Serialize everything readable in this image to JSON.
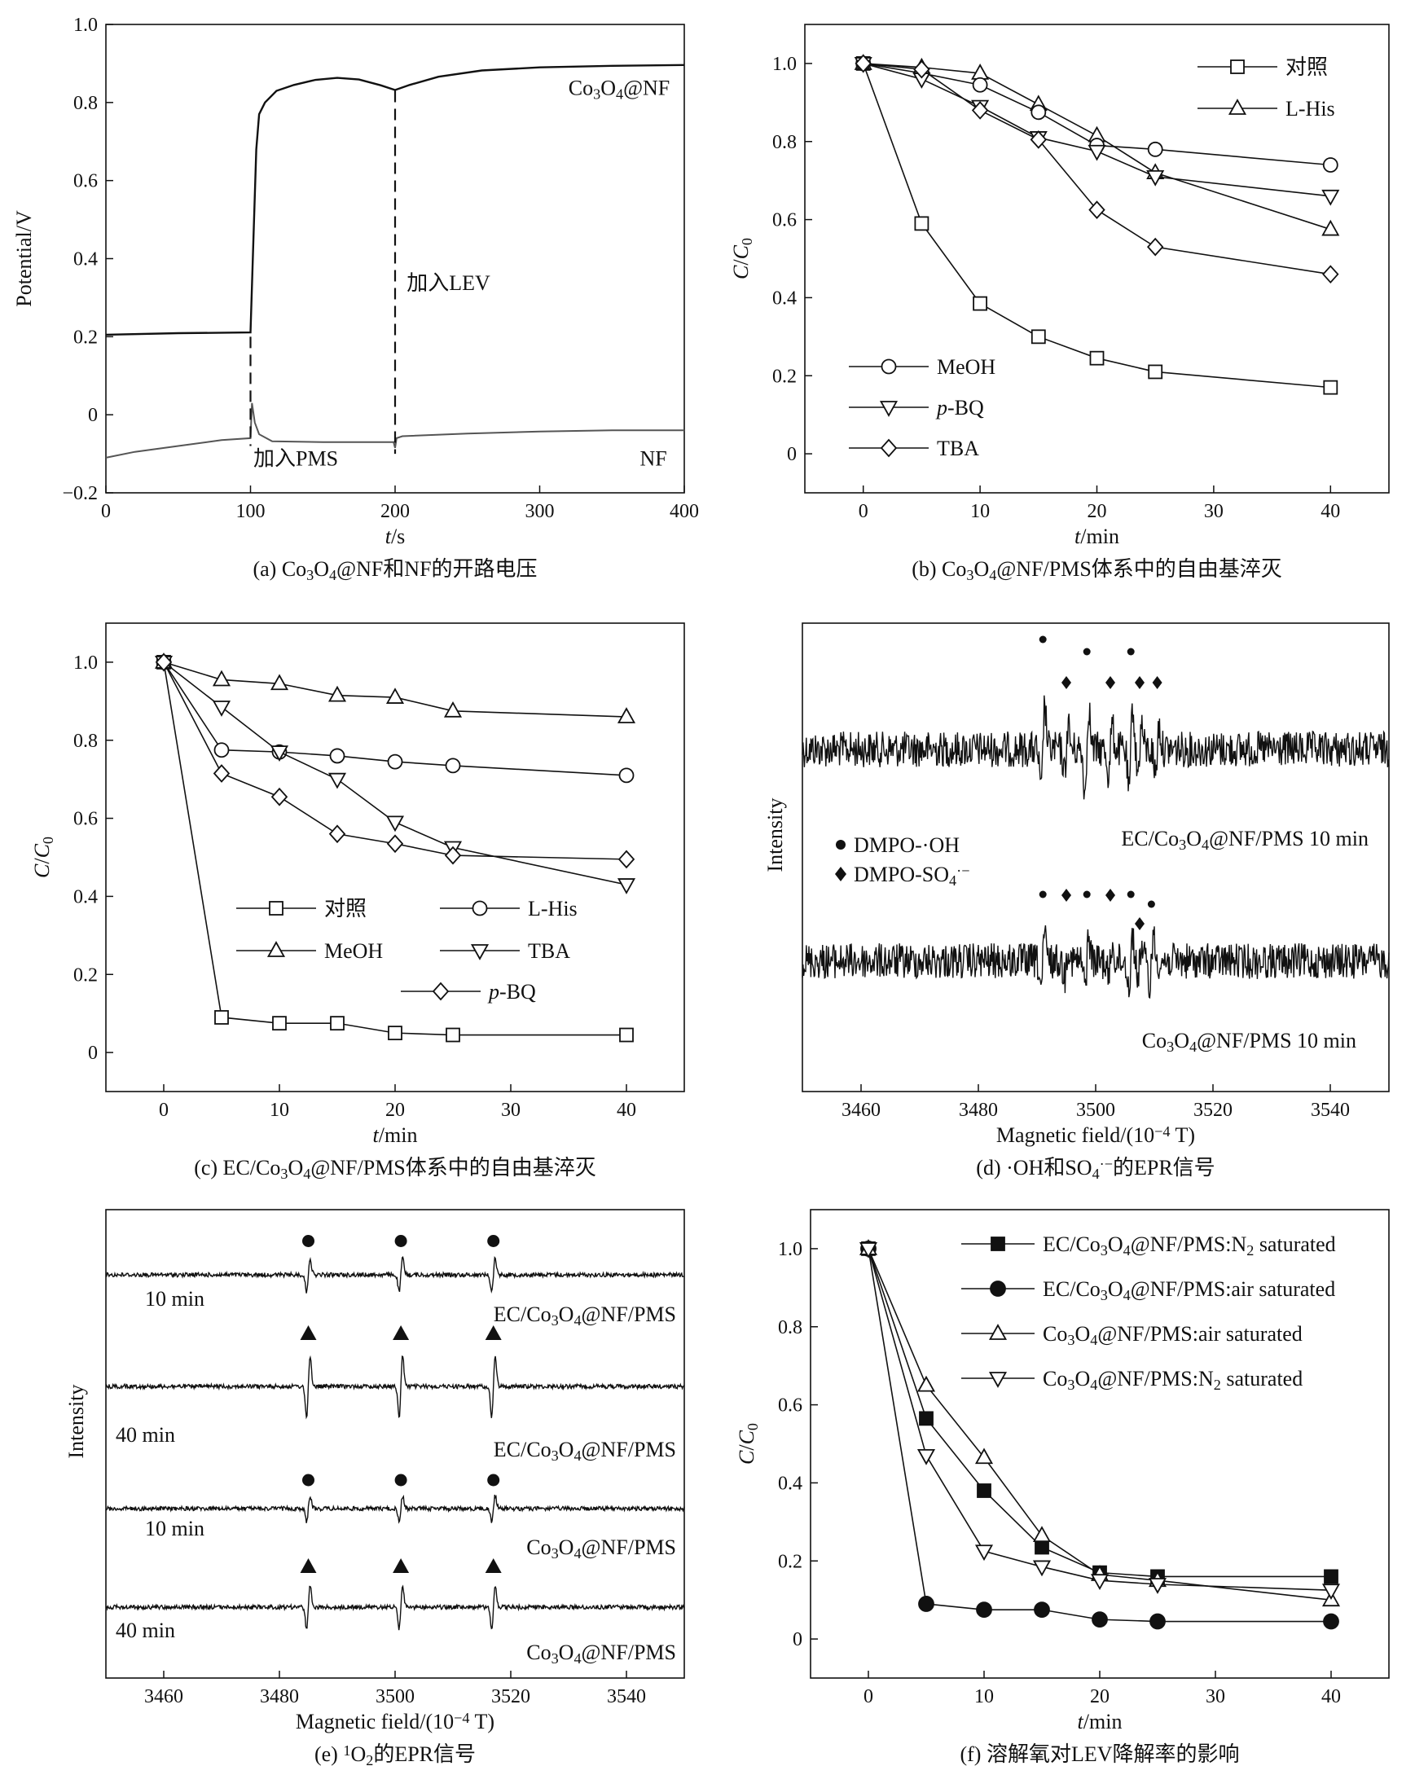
{
  "chart_data": [
    {
      "id": "a",
      "type": "line",
      "caption": "(a) Co3O4@NF和NF的开路电压",
      "xlabel": "t/s",
      "ylabel": "Potential/V",
      "xlim": [
        0,
        400
      ],
      "ylim": [
        -0.2,
        1.0
      ],
      "xticks": [
        0,
        100,
        200,
        300,
        400
      ],
      "yticks": [
        -0.2,
        0,
        0.2,
        0.4,
        0.6,
        0.8,
        1.0
      ],
      "series": [
        {
          "name": "Co3O4@NF",
          "color": "#111111",
          "x": [
            0,
            50,
            100,
            102,
            104,
            106,
            110,
            118,
            130,
            145,
            160,
            175,
            190,
            200,
            210,
            230,
            260,
            300,
            350,
            400
          ],
          "y": [
            0.205,
            0.209,
            0.211,
            0.45,
            0.68,
            0.77,
            0.8,
            0.83,
            0.845,
            0.858,
            0.863,
            0.859,
            0.844,
            0.832,
            0.845,
            0.866,
            0.882,
            0.89,
            0.894,
            0.896
          ]
        },
        {
          "name": "NF",
          "color": "#555555",
          "x": [
            0,
            20,
            50,
            80,
            100,
            101,
            103,
            106,
            115,
            150,
            199,
            200,
            201,
            205,
            250,
            300,
            350,
            400
          ],
          "y": [
            -0.11,
            -0.095,
            -0.08,
            -0.065,
            -0.06,
            0.03,
            -0.02,
            -0.05,
            -0.068,
            -0.07,
            -0.07,
            -0.085,
            -0.06,
            -0.055,
            -0.048,
            -0.043,
            -0.04,
            -0.04
          ]
        }
      ],
      "annotations": {
        "pms": "加入PMS",
        "lev": "加入LEV",
        "co3o4_label": "Co3O4@NF",
        "nf_label": "NF"
      }
    },
    {
      "id": "b",
      "type": "line",
      "caption": "(b) Co3O4@NF/PMS体系中的自由基淬灭",
      "xlabel": "t/min",
      "ylabel": "C/C0",
      "xlim": [
        -5,
        45
      ],
      "ylim": [
        -0.1,
        1.1
      ],
      "xticks": [
        0,
        10,
        20,
        30,
        40
      ],
      "yticks": [
        0,
        0.2,
        0.4,
        0.6,
        0.8,
        1.0
      ],
      "x": [
        0,
        5,
        10,
        15,
        20,
        25,
        40
      ],
      "series": [
        {
          "name": "对照",
          "marker": "square",
          "values": [
            1.0,
            0.59,
            0.385,
            0.3,
            0.245,
            0.21,
            0.17
          ]
        },
        {
          "name": "L-His",
          "marker": "triangle-up",
          "values": [
            1.0,
            0.99,
            0.975,
            0.895,
            0.815,
            0.72,
            0.575
          ]
        },
        {
          "name": "MeOH",
          "marker": "circle",
          "values": [
            1.0,
            0.975,
            0.945,
            0.875,
            0.79,
            0.78,
            0.74
          ]
        },
        {
          "name": "p-BQ",
          "marker": "triangle-down",
          "values": [
            1.0,
            0.96,
            0.89,
            0.81,
            0.775,
            0.71,
            0.66
          ]
        },
        {
          "name": "TBA",
          "marker": "diamond",
          "values": [
            1.0,
            0.985,
            0.88,
            0.805,
            0.625,
            0.53,
            0.46
          ]
        }
      ]
    },
    {
      "id": "c",
      "type": "line",
      "caption": "(c) EC/Co3O4@NF/PMS体系中的自由基淬灭",
      "xlabel": "t/min",
      "ylabel": "C/C0",
      "xlim": [
        -5,
        45
      ],
      "ylim": [
        -0.1,
        1.1
      ],
      "xticks": [
        0,
        10,
        20,
        30,
        40
      ],
      "yticks": [
        0,
        0.2,
        0.4,
        0.6,
        0.8,
        1.0
      ],
      "x": [
        0,
        5,
        10,
        15,
        20,
        25,
        40
      ],
      "series": [
        {
          "name": "对照",
          "marker": "square",
          "values": [
            1.0,
            0.09,
            0.075,
            0.075,
            0.05,
            0.045,
            0.045
          ]
        },
        {
          "name": "L-His",
          "marker": "circle",
          "values": [
            1.0,
            0.775,
            0.77,
            0.76,
            0.745,
            0.735,
            0.71
          ]
        },
        {
          "name": "MeOH",
          "marker": "triangle-up",
          "values": [
            1.0,
            0.955,
            0.945,
            0.915,
            0.91,
            0.875,
            0.86
          ]
        },
        {
          "name": "TBA",
          "marker": "triangle-down",
          "values": [
            1.0,
            0.885,
            0.77,
            0.7,
            0.59,
            0.525,
            0.43
          ]
        },
        {
          "name": "p-BQ",
          "marker": "diamond",
          "values": [
            1.0,
            0.715,
            0.655,
            0.56,
            0.535,
            0.505,
            0.495
          ]
        }
      ]
    },
    {
      "id": "d",
      "type": "line",
      "caption": "(d) ·OH和SO4·−的EPR信号",
      "xlabel": "Magnetic field/(10⁻⁴ T)",
      "ylabel": "Intensity",
      "xlim": [
        3450,
        3550
      ],
      "xticks": [
        3460,
        3480,
        3500,
        3520,
        3540
      ],
      "traces": [
        {
          "name": "EC/Co3O4@NF/PMS   10 min",
          "peaks_oh": [
            3491,
            3498.5,
            3506
          ],
          "peaks_so4": [
            3495,
            3502.5,
            3507.5,
            3510.5
          ]
        },
        {
          "name": "Co3O4@NF/PMS   10 min",
          "peaks_oh": [
            3491,
            3498.5,
            3506,
            3509.5
          ],
          "peaks_so4": [
            3495,
            3502.5,
            3507.5
          ]
        }
      ],
      "legend": [
        "DMPO-·OH",
        "DMPO-SO4·−"
      ]
    },
    {
      "id": "e",
      "type": "line",
      "caption": "(e) ¹O2的EPR信号",
      "xlabel": "Magnetic field/(10⁻⁴ T)",
      "ylabel": "Intensity",
      "xlim": [
        3450,
        3550
      ],
      "xticks": [
        3460,
        3480,
        3500,
        3520,
        3540
      ],
      "peaks": [
        3485,
        3501,
        3517
      ],
      "traces": [
        {
          "time": "10 min",
          "system": "EC/Co3O4@NF/PMS",
          "marker": "circle",
          "amp": 0.55
        },
        {
          "time": "40 min",
          "system": "EC/Co3O4@NF/PMS",
          "marker": "triangle",
          "amp": 1.0
        },
        {
          "time": "10 min",
          "system": "Co3O4@NF/PMS",
          "marker": "circle",
          "amp": 0.42
        },
        {
          "time": "40 min",
          "system": "Co3O4@NF/PMS",
          "marker": "triangle",
          "amp": 0.7
        }
      ]
    },
    {
      "id": "f",
      "type": "line",
      "caption": "(f) 溶解氧对LEV降解率的影响",
      "xlabel": "t/min",
      "ylabel": "C/C0",
      "xlim": [
        -5,
        45
      ],
      "ylim": [
        -0.1,
        1.1
      ],
      "xticks": [
        0,
        10,
        20,
        30,
        40
      ],
      "yticks": [
        0,
        0.2,
        0.4,
        0.6,
        0.8,
        1.0
      ],
      "x": [
        0,
        5,
        10,
        15,
        20,
        25,
        40
      ],
      "series": [
        {
          "name": "EC/Co3O4@NF/PMS:N2 saturated",
          "marker": "filled-square",
          "values": [
            1.0,
            0.565,
            0.38,
            0.235,
            0.17,
            0.16,
            0.16
          ]
        },
        {
          "name": "EC/Co3O4@NF/PMS:air saturated",
          "marker": "filled-circle",
          "values": [
            1.0,
            0.09,
            0.075,
            0.075,
            0.05,
            0.045,
            0.045
          ]
        },
        {
          "name": "Co3O4@NF/PMS:air saturated",
          "marker": "triangle-up",
          "values": [
            1.0,
            0.65,
            0.465,
            0.265,
            0.165,
            0.15,
            0.1
          ]
        },
        {
          "name": "Co3O4@NF/PMS:N2 saturated",
          "marker": "triangle-down",
          "values": [
            1.0,
            0.47,
            0.225,
            0.185,
            0.15,
            0.14,
            0.125
          ]
        }
      ]
    }
  ]
}
